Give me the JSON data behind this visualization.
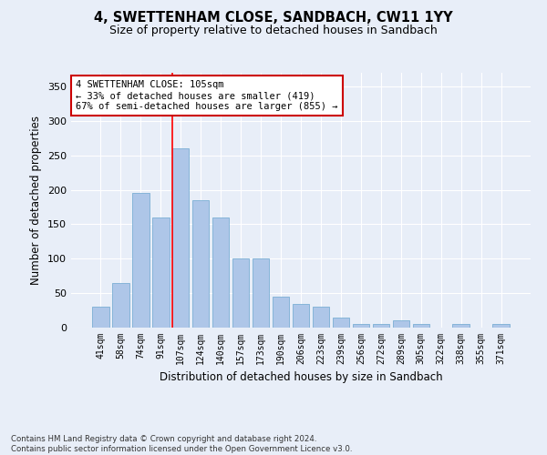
{
  "title": "4, SWETTENHAM CLOSE, SANDBACH, CW11 1YY",
  "subtitle": "Size of property relative to detached houses in Sandbach",
  "xlabel": "Distribution of detached houses by size in Sandbach",
  "ylabel": "Number of detached properties",
  "categories": [
    "41sqm",
    "58sqm",
    "74sqm",
    "91sqm",
    "107sqm",
    "124sqm",
    "140sqm",
    "157sqm",
    "173sqm",
    "190sqm",
    "206sqm",
    "223sqm",
    "239sqm",
    "256sqm",
    "272sqm",
    "289sqm",
    "305sqm",
    "322sqm",
    "338sqm",
    "355sqm",
    "371sqm"
  ],
  "values": [
    30,
    65,
    195,
    160,
    260,
    185,
    160,
    100,
    100,
    45,
    35,
    30,
    15,
    5,
    5,
    10,
    5,
    0,
    5,
    0,
    5
  ],
  "bar_color": "#aec6e8",
  "bar_edge_color": "#7aafd4",
  "background_color": "#e8eef8",
  "grid_color": "#ffffff",
  "red_line_index": 4,
  "annotation_line1": "4 SWETTENHAM CLOSE: 105sqm",
  "annotation_line2": "← 33% of detached houses are smaller (419)",
  "annotation_line3": "67% of semi-detached houses are larger (855) →",
  "annotation_box_color": "#ffffff",
  "annotation_box_edge": "#cc0000",
  "ylim": [
    0,
    370
  ],
  "yticks": [
    0,
    50,
    100,
    150,
    200,
    250,
    300,
    350
  ],
  "footnote_line1": "Contains HM Land Registry data © Crown copyright and database right 2024.",
  "footnote_line2": "Contains public sector information licensed under the Open Government Licence v3.0."
}
